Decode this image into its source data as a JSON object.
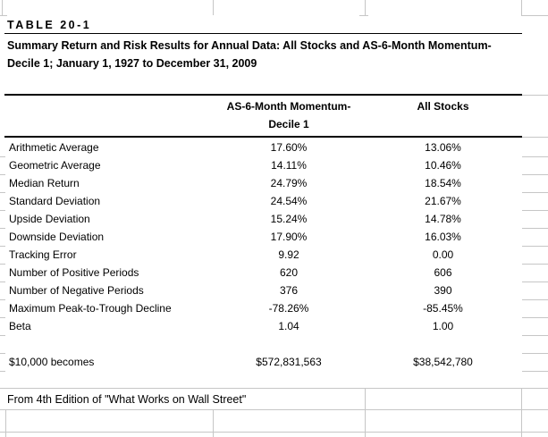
{
  "sheet": {
    "table_label": "TABLE 20-1",
    "title_line1": "Summary Return and Risk Results for Annual Data: All Stocks and AS-6-Month Momentum-",
    "title_line2": "Decile 1; January 1, 1927 to December 31, 2009",
    "columns": {
      "momentum_line1": "AS-6-Month Momentum-",
      "momentum_line2": "Decile 1",
      "all_stocks": "All Stocks"
    },
    "rows": [
      {
        "label": "Arithmetic Average",
        "momentum": "17.60%",
        "all_stocks": "13.06%"
      },
      {
        "label": "Geometric Average",
        "momentum": "14.11%",
        "all_stocks": "10.46%"
      },
      {
        "label": "Median Return",
        "momentum": "24.79%",
        "all_stocks": "18.54%"
      },
      {
        "label": "Standard Deviation",
        "momentum": "24.54%",
        "all_stocks": "21.67%"
      },
      {
        "label": "Upside Deviation",
        "momentum": "15.24%",
        "all_stocks": "14.78%"
      },
      {
        "label": "Downside Deviation",
        "momentum": "17.90%",
        "all_stocks": "16.03%"
      },
      {
        "label": "Tracking Error",
        "momentum": "9.92",
        "all_stocks": "0.00"
      },
      {
        "label": "Number of Positive Periods",
        "momentum": "620",
        "all_stocks": "606"
      },
      {
        "label": "Number of Negative Periods",
        "momentum": "376",
        "all_stocks": "390"
      },
      {
        "label": "Maximum Peak-to-Trough Decline",
        "momentum": "-78.26%",
        "all_stocks": "-85.45%"
      },
      {
        "label": "Beta",
        "momentum": "1.04",
        "all_stocks": "1.00"
      }
    ],
    "becomes_row": {
      "label": "$10,000 becomes",
      "momentum": "$572,831,563",
      "all_stocks": "$38,542,780"
    },
    "footer": "From 4th Edition of \"What Works on Wall Street\""
  },
  "colors": {
    "background": "#ffffff",
    "text": "#000000",
    "table_rule": "#000000",
    "gridline": "#c6c6c6"
  }
}
